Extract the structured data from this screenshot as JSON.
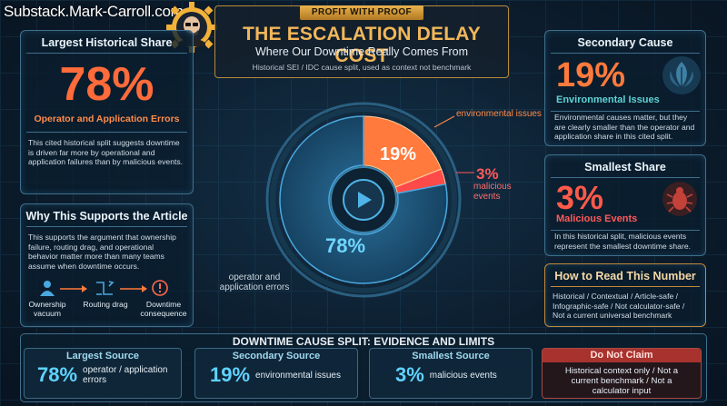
{
  "brand": "Substack.Mark-Carroll.com",
  "banner": {
    "ribbon": "PROFIT WITH PROOF",
    "title": "THE ESCALATION DELAY COST",
    "subtitle": "Where Our Downtime Really Comes From",
    "note": "Historical SEI / IDC cause split, used as context not benchmark"
  },
  "left_top": {
    "title": "Largest Historical Share",
    "value": "78%",
    "label": "Operator and Application Errors",
    "text": "This cited historical split suggests downtime is driven far more by operational and application failures than by malicious events."
  },
  "left_bottom": {
    "title": "Why This Supports the Article",
    "text": "This supports the argument that ownership failure, routing drag, and operational behavior matter more than many teams assume when downtime occurs.",
    "flow": [
      {
        "icon": "person-icon",
        "label": "Ownership vacuum"
      },
      {
        "icon": "routing-icon",
        "label": "Routing drag"
      },
      {
        "icon": "alert-icon",
        "label": "Downtime consequence"
      }
    ]
  },
  "chart_data": {
    "type": "pie",
    "categories": [
      "operator and application errors",
      "environmental issues",
      "malicious events"
    ],
    "values": [
      78,
      19,
      3
    ],
    "value_labels": [
      "78%",
      "19%",
      "3%"
    ],
    "colors": [
      "#1b4f72",
      "#ff7a3c",
      "#ff4a4a"
    ],
    "annotations": [
      "operator and application errors",
      "environmental issues",
      "malicious events"
    ]
  },
  "right_top": {
    "title": "Secondary Cause",
    "value": "19%",
    "label": "Environmental Issues",
    "text": "Environmental causes matter, but they are clearly smaller than the operator and application share in this cited split."
  },
  "right_mid": {
    "title": "Smallest Share",
    "value": "3%",
    "label": "Malicious Events",
    "text": "In this historical split, malicious events represent the smallest downtime share."
  },
  "right_bottom": {
    "title": "How to Read This Number",
    "text": "Historical / Contextual / Article-safe / Infographic-safe / Not calculator-safe / Not a current universal benchmark"
  },
  "bottom": {
    "title": "DOWNTIME CAUSE SPLIT: EVIDENCE AND LIMITS",
    "cards": [
      {
        "title": "Largest Source",
        "value": "78%",
        "desc": "operator / application errors"
      },
      {
        "title": "Secondary Source",
        "value": "19%",
        "desc": "environmental issues"
      },
      {
        "title": "Smallest Source",
        "value": "3%",
        "desc": "malicious events"
      },
      {
        "title": "Do Not Claim",
        "desc": "Historical context only / Not a current benchmark / Not a calculator input"
      }
    ]
  }
}
